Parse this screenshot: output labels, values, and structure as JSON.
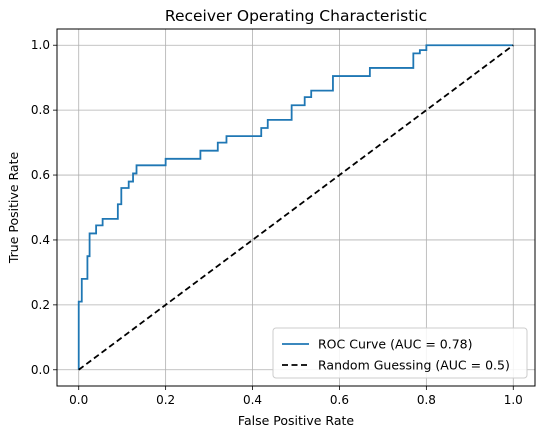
{
  "chart_data": {
    "type": "line",
    "title": "Receiver Operating Characteristic",
    "xlabel": "False Positive Rate",
    "ylabel": "True Positive Rate",
    "xlim": [
      -0.05,
      1.05
    ],
    "ylim": [
      -0.05,
      1.05
    ],
    "x_ticks": [
      "0.0",
      "0.2",
      "0.4",
      "0.6",
      "0.8",
      "1.0"
    ],
    "y_ticks": [
      "0.0",
      "0.2",
      "0.4",
      "0.6",
      "0.8",
      "1.0"
    ],
    "grid": true,
    "legend_position": "lower-right",
    "series": [
      {
        "name": "ROC Curve (AUC = 0.78)",
        "color": "#1f77b4",
        "style": "solid",
        "x": [
          0.0,
          0.0,
          0.007,
          0.007,
          0.02,
          0.02,
          0.025,
          0.025,
          0.04,
          0.04,
          0.055,
          0.055,
          0.09,
          0.09,
          0.098,
          0.098,
          0.115,
          0.115,
          0.125,
          0.125,
          0.133,
          0.133,
          0.2,
          0.2,
          0.28,
          0.28,
          0.32,
          0.32,
          0.34,
          0.34,
          0.42,
          0.42,
          0.435,
          0.435,
          0.49,
          0.49,
          0.52,
          0.52,
          0.535,
          0.535,
          0.585,
          0.585,
          0.67,
          0.67,
          0.77,
          0.77,
          0.785,
          0.785,
          0.8,
          0.8,
          1.0
        ],
        "y": [
          0.0,
          0.21,
          0.21,
          0.28,
          0.28,
          0.35,
          0.35,
          0.42,
          0.42,
          0.445,
          0.445,
          0.465,
          0.465,
          0.51,
          0.51,
          0.56,
          0.56,
          0.58,
          0.58,
          0.605,
          0.605,
          0.63,
          0.63,
          0.65,
          0.65,
          0.675,
          0.675,
          0.7,
          0.7,
          0.72,
          0.72,
          0.745,
          0.745,
          0.77,
          0.77,
          0.815,
          0.815,
          0.84,
          0.84,
          0.86,
          0.86,
          0.905,
          0.905,
          0.93,
          0.93,
          0.975,
          0.975,
          0.985,
          0.985,
          1.0,
          1.0
        ]
      },
      {
        "name": "Random Guessing (AUC = 0.5)",
        "color": "#000000",
        "style": "dashed",
        "x": [
          0,
          1
        ],
        "y": [
          0,
          1
        ]
      }
    ]
  }
}
